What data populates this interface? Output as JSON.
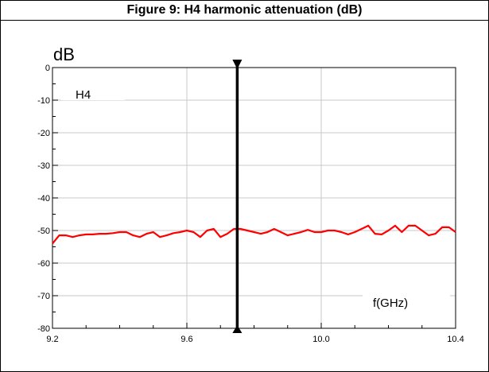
{
  "figure": {
    "caption": "Figure 9: H4 harmonic attenuation (dB)"
  },
  "chart_data": {
    "type": "line",
    "ylabel": "dB",
    "xlabel": "f(GHz)",
    "series_label": "H4",
    "xlim": [
      9.2,
      10.4
    ],
    "ylim": [
      -80,
      0
    ],
    "x_ticks": [
      "9.2",
      "9.6",
      "10.0",
      "10.4"
    ],
    "y_ticks": [
      "0",
      "-10",
      "-20",
      "-30",
      "-40",
      "-50",
      "-60",
      "-70",
      "-80"
    ],
    "grid": true,
    "marker_x": 9.75,
    "series": [
      {
        "color": "#ff0000",
        "x": [
          9.2,
          9.22,
          9.24,
          9.26,
          9.28,
          9.3,
          9.32,
          9.34,
          9.36,
          9.38,
          9.4,
          9.42,
          9.44,
          9.46,
          9.48,
          9.5,
          9.52,
          9.54,
          9.56,
          9.58,
          9.6,
          9.62,
          9.64,
          9.66,
          9.68,
          9.7,
          9.72,
          9.74,
          9.76,
          9.78,
          9.8,
          9.82,
          9.84,
          9.86,
          9.88,
          9.9,
          9.92,
          9.94,
          9.96,
          9.98,
          10.0,
          10.02,
          10.04,
          10.06,
          10.08,
          10.1,
          10.12,
          10.14,
          10.16,
          10.18,
          10.2,
          10.22,
          10.24,
          10.26,
          10.28,
          10.3,
          10.32,
          10.34,
          10.36,
          10.38,
          10.4
        ],
        "values": [
          -54,
          -51.5,
          -51.5,
          -52,
          -51.5,
          -51.2,
          -51.2,
          -51,
          -51,
          -50.8,
          -50.5,
          -50.5,
          -51.5,
          -52,
          -51,
          -50.5,
          -52,
          -51.5,
          -50.8,
          -50.5,
          -50,
          -50.5,
          -52,
          -50,
          -49.5,
          -52,
          -51,
          -49.5,
          -49.5,
          -50,
          -50.5,
          -51,
          -50.5,
          -49.5,
          -50.5,
          -51.5,
          -51,
          -50.5,
          -49.8,
          -50.5,
          -50.5,
          -50,
          -50,
          -50.5,
          -51.2,
          -50.5,
          -49.5,
          -48.5,
          -51,
          -51.2,
          -50,
          -48.5,
          -50.5,
          -48.5,
          -48.5,
          -50,
          -51.5,
          -51,
          -49,
          -49,
          -50.5
        ]
      }
    ]
  }
}
